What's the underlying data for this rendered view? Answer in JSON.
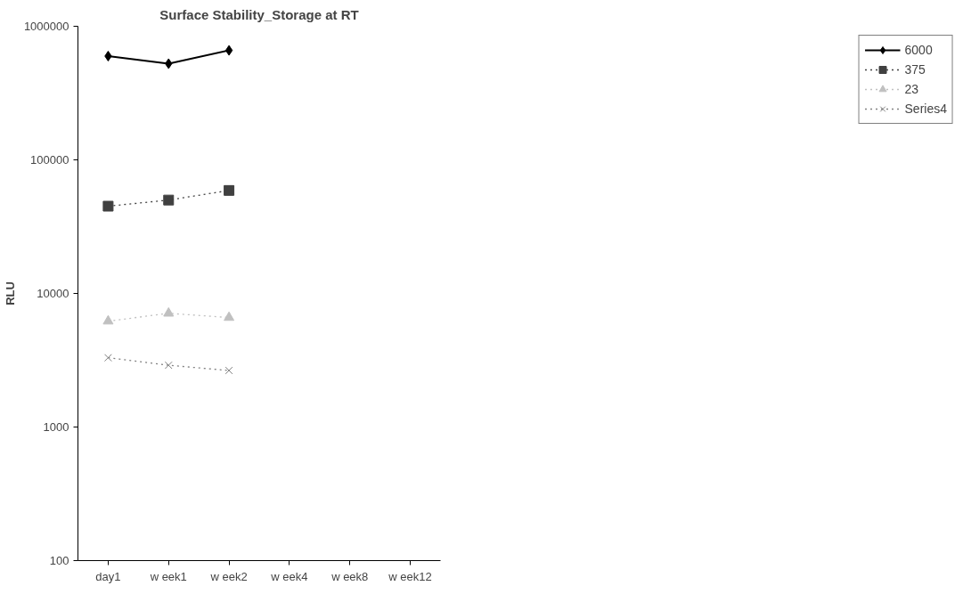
{
  "chart_data": {
    "type": "line",
    "title": "Surface Stability_Storage at RT",
    "ylabel": "RLU",
    "categories": [
      "day1",
      "w eek1",
      "w eek2",
      "w eek4",
      "w eek8",
      "w eek12"
    ],
    "log": true,
    "ylim": [
      100,
      1000000
    ],
    "yticks": [
      100,
      1000,
      10000,
      100000,
      1000000
    ],
    "grid": false,
    "legend": "right",
    "series": [
      {
        "name": "6000",
        "color": "#000000",
        "marker": "diamond",
        "line_style": "solid",
        "values": [
          598000,
          525000,
          660000,
          null,
          null,
          null
        ]
      },
      {
        "name": "375",
        "color": "#404040",
        "marker": "square",
        "line_style": "dotted",
        "values": [
          45000,
          50000,
          59000,
          null,
          null,
          null
        ]
      },
      {
        "name": "23",
        "color": "#c0c0c0",
        "marker": "triangle",
        "line_style": "dotted",
        "values": [
          6200,
          7100,
          6600,
          null,
          null,
          null
        ]
      },
      {
        "name": "Series4",
        "color": "#808080",
        "marker": "cross",
        "line_style": "dotted",
        "values": [
          3300,
          2900,
          2650,
          null,
          null,
          null
        ]
      }
    ]
  }
}
